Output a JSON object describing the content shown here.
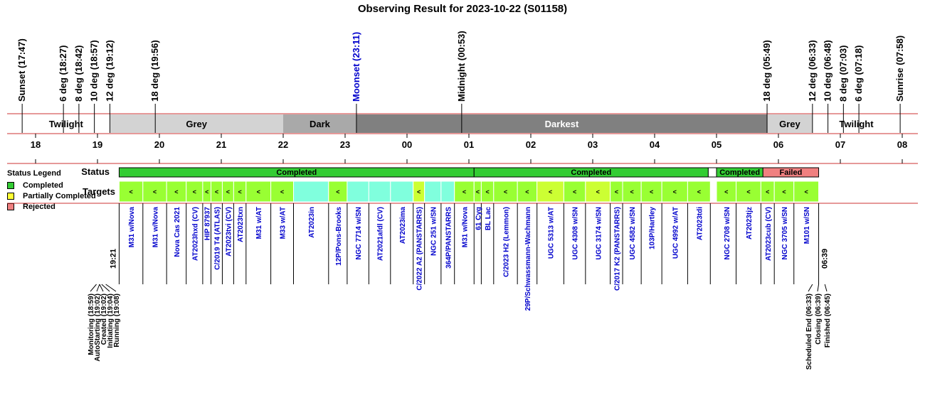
{
  "title": "Observing Result for 2023-10-22 (S01158)",
  "legend": {
    "title": "Status Legend",
    "items": [
      {
        "label": "Completed",
        "color": "#33cc33"
      },
      {
        "label": "Partially Completed",
        "color": "#ffff33"
      },
      {
        "label": "Rejected",
        "color": "#f08080"
      }
    ]
  },
  "chart_data": {
    "type": "timeline",
    "x_axis": {
      "unit": "hour",
      "range": [
        "17:30",
        "08:00"
      ],
      "ticks": [
        "18",
        "19",
        "20",
        "21",
        "22",
        "23",
        "00",
        "01",
        "02",
        "03",
        "04",
        "05",
        "06",
        "07",
        "08"
      ]
    },
    "row_labels": {
      "status": "Status",
      "targets": "Targets"
    },
    "twilight_markers": [
      {
        "label": "Sunset (17:47)",
        "time": "17:47",
        "color": "#000000"
      },
      {
        "label": "6 deg (18:27)",
        "time": "18:27",
        "color": "#000000"
      },
      {
        "label": "8 deg (18:42)",
        "time": "18:42",
        "color": "#000000"
      },
      {
        "label": "10 deg (18:57)",
        "time": "18:57",
        "color": "#000000"
      },
      {
        "label": "12 deg (19:12)",
        "time": "19:12",
        "color": "#000000"
      },
      {
        "label": "18 deg (19:56)",
        "time": "19:56",
        "color": "#000000"
      },
      {
        "label": "Moonset (23:11)",
        "time": "23:11",
        "color": "#0000cc"
      },
      {
        "label": "Midnight (00:53)",
        "time": "00:53",
        "color": "#000000"
      },
      {
        "label": "18 deg (05:49)",
        "time": "05:49",
        "color": "#000000"
      },
      {
        "label": "12 deg (06:33)",
        "time": "06:33",
        "color": "#000000"
      },
      {
        "label": "10 deg (06:48)",
        "time": "06:48",
        "color": "#000000"
      },
      {
        "label": "8 deg (07:03)",
        "time": "07:03",
        "color": "#000000"
      },
      {
        "label": "6 deg (07:18)",
        "time": "07:18",
        "color": "#000000"
      },
      {
        "label": "Sunrise (07:58)",
        "time": "07:58",
        "color": "#000000"
      }
    ],
    "sky_phases": [
      {
        "label": "Twilight",
        "start": "17:47",
        "end": "19:12",
        "color": "#ffffff",
        "text_color": "#000000"
      },
      {
        "label": "Grey",
        "start": "19:12",
        "end": "22:00",
        "color": "#d3d3d3",
        "text_color": "#000000"
      },
      {
        "label": "Dark",
        "start": "22:00",
        "end": "23:11",
        "color": "#a9a9a9",
        "text_color": "#000000"
      },
      {
        "label": "Darkest",
        "start": "23:11",
        "end": "05:49",
        "color": "#808080",
        "text_color": "#ffffff"
      },
      {
        "label": "Grey",
        "start": "05:49",
        "end": "06:33",
        "color": "#d3d3d3",
        "text_color": "#000000"
      },
      {
        "label": "Twilight",
        "start": "06:33",
        "end": "07:58",
        "color": "#ffffff",
        "text_color": "#000000"
      }
    ],
    "status_blocks": [
      {
        "label": "Completed",
        "start": "19:21",
        "end": "01:05",
        "color": "#33cc33"
      },
      {
        "label": "Completed",
        "start": "01:05",
        "end": "04:52",
        "color": "#33cc33"
      },
      {
        "label": "",
        "start": "04:52",
        "end": "05:00",
        "color": "#ffffff"
      },
      {
        "label": "Completed",
        "start": "05:00",
        "end": "05:45",
        "color": "#33cc33"
      },
      {
        "label": "Failed",
        "start": "05:45",
        "end": "06:39",
        "color": "#f08080"
      }
    ],
    "targets": [
      {
        "name": "M31 w/Nova",
        "start": "19:21",
        "end": "19:44",
        "color": "#99ff33",
        "marker": "<"
      },
      {
        "name": "M31 w/Nova",
        "start": "19:44",
        "end": "20:07",
        "color": "#99ff33",
        "marker": "<"
      },
      {
        "name": "Nova Cas 2021",
        "start": "20:07",
        "end": "20:26",
        "color": "#99ff33",
        "marker": "<"
      },
      {
        "name": "AT2023hxd (CV)",
        "start": "20:26",
        "end": "20:42",
        "color": "#99ff33",
        "marker": "<"
      },
      {
        "name": "HIP 87937",
        "start": "20:42",
        "end": "20:50",
        "color": "#99ff33",
        "marker": "<"
      },
      {
        "name": "C/2019 T4 (ATLAS)",
        "start": "20:50",
        "end": "21:01",
        "color": "#99ff33",
        "marker": "<"
      },
      {
        "name": "AT2023tvi (CV)",
        "start": "21:01",
        "end": "21:12",
        "color": "#99ff33",
        "marker": "<"
      },
      {
        "name": "AT2023txn",
        "start": "21:12",
        "end": "21:24",
        "color": "#99ff33",
        "marker": "<"
      },
      {
        "name": "M31 w/AT",
        "start": "21:24",
        "end": "21:48",
        "color": "#99ff33",
        "marker": "<"
      },
      {
        "name": "M33 w/AT",
        "start": "21:48",
        "end": "22:10",
        "color": "#99ff33",
        "marker": "<"
      },
      {
        "name": "AT2023in",
        "start": "22:10",
        "end": "22:44",
        "color": "#80ffdd",
        "marker": ""
      },
      {
        "name": "12P/Pons-Brooks",
        "start": "22:44",
        "end": "23:02",
        "color": "#99ff33",
        "marker": "<"
      },
      {
        "name": "NGC 7714 w/SN",
        "start": "23:02",
        "end": "23:23",
        "color": "#80ffdd",
        "marker": ""
      },
      {
        "name": "AT2021afdl (CV)",
        "start": "23:23",
        "end": "23:44",
        "color": "#80ffdd",
        "marker": ""
      },
      {
        "name": "AT2023ima",
        "start": "23:44",
        "end": "24:06",
        "color": "#80ffdd",
        "marker": ""
      },
      {
        "name": "C/2022 A2 (PANSTARRS)",
        "start": "24:06",
        "end": "24:17",
        "color": "#ccff33",
        "marker": "<"
      },
      {
        "name": "NGC 251 w/SN",
        "start": "24:17",
        "end": "24:33",
        "color": "#80ffdd",
        "marker": ""
      },
      {
        "name": "364P/PANSTARRS",
        "start": "24:33",
        "end": "24:46",
        "color": "#80ffdd",
        "marker": ""
      },
      {
        "name": "M31 w/Nova",
        "start": "24:46",
        "end": "25:05",
        "color": "#99ff33",
        "marker": "<"
      },
      {
        "name": "61 Cyg",
        "start": "25:05",
        "end": "25:12",
        "color": "#99ff33",
        "marker": "<"
      },
      {
        "name": "BL Lac",
        "start": "25:12",
        "end": "25:24",
        "color": "#99ff33",
        "marker": "<"
      },
      {
        "name": "C/2023 H2 (Lemmon)",
        "start": "25:24",
        "end": "25:47",
        "color": "#99ff33",
        "marker": "<"
      },
      {
        "name": "29P/Schwassmann-Wachmann",
        "start": "25:47",
        "end": "26:06",
        "color": "#99ff33",
        "marker": "<"
      },
      {
        "name": "UGC 5313 w/AT",
        "start": "26:06",
        "end": "26:32",
        "color": "#ccff33",
        "marker": "<"
      },
      {
        "name": "UGC 4308 w/SN",
        "start": "26:32",
        "end": "26:53",
        "color": "#99ff33",
        "marker": "<"
      },
      {
        "name": "UGC 3174 w/SN",
        "start": "26:53",
        "end": "27:17",
        "color": "#ccff33",
        "marker": "<"
      },
      {
        "name": "C/2017 K2 (PANSTARRS)",
        "start": "27:17",
        "end": "27:29",
        "color": "#99ff33",
        "marker": "<"
      },
      {
        "name": "UGC 4582 w/SN",
        "start": "27:29",
        "end": "27:47",
        "color": "#99ff33",
        "marker": "<"
      },
      {
        "name": "103P/Hartley",
        "start": "27:47",
        "end": "28:07",
        "color": "#99ff33",
        "marker": "<"
      },
      {
        "name": "UGC 4992 w/AT",
        "start": "28:07",
        "end": "28:32",
        "color": "#99ff33",
        "marker": "<"
      },
      {
        "name": "AT2023tdi",
        "start": "28:32",
        "end": "28:54",
        "color": "#99ff33",
        "marker": "<"
      },
      {
        "name": "NGC 2708 w/SN",
        "start": "29:00",
        "end": "29:19",
        "color": "#99ff33",
        "marker": "<"
      },
      {
        "name": "AT2023tjz",
        "start": "29:19",
        "end": "29:43",
        "color": "#99ff33",
        "marker": "<"
      },
      {
        "name": "AT2023cub (CV)",
        "start": "29:43",
        "end": "29:56",
        "color": "#99ff33",
        "marker": "<"
      },
      {
        "name": "NGC 3705 w/SN",
        "start": "29:56",
        "end": "30:15",
        "color": "#99ff33",
        "marker": "<"
      },
      {
        "name": "M101 w/SN",
        "start": "30:15",
        "end": "30:39",
        "color": "#99ff33",
        "marker": "<"
      }
    ],
    "target_time_labels": [
      "19:21",
      "06:39"
    ],
    "events_start": [
      {
        "label": "Monitoring (18:59)",
        "time": "18:59"
      },
      {
        "label": "AutoStarting (19:02)",
        "time": "19:02"
      },
      {
        "label": "Created (19:02)",
        "time": "19:02"
      },
      {
        "label": "Initiating (19:04)",
        "time": "19:04"
      },
      {
        "label": "Running (19:08)",
        "time": "19:08"
      }
    ],
    "events_end": [
      {
        "label": "Scheduled End (06:33)",
        "time": "06:33"
      },
      {
        "label": "Closing (06:39)",
        "time": "06:39"
      },
      {
        "label": "Finished (06:45)",
        "time": "06:45"
      }
    ]
  }
}
